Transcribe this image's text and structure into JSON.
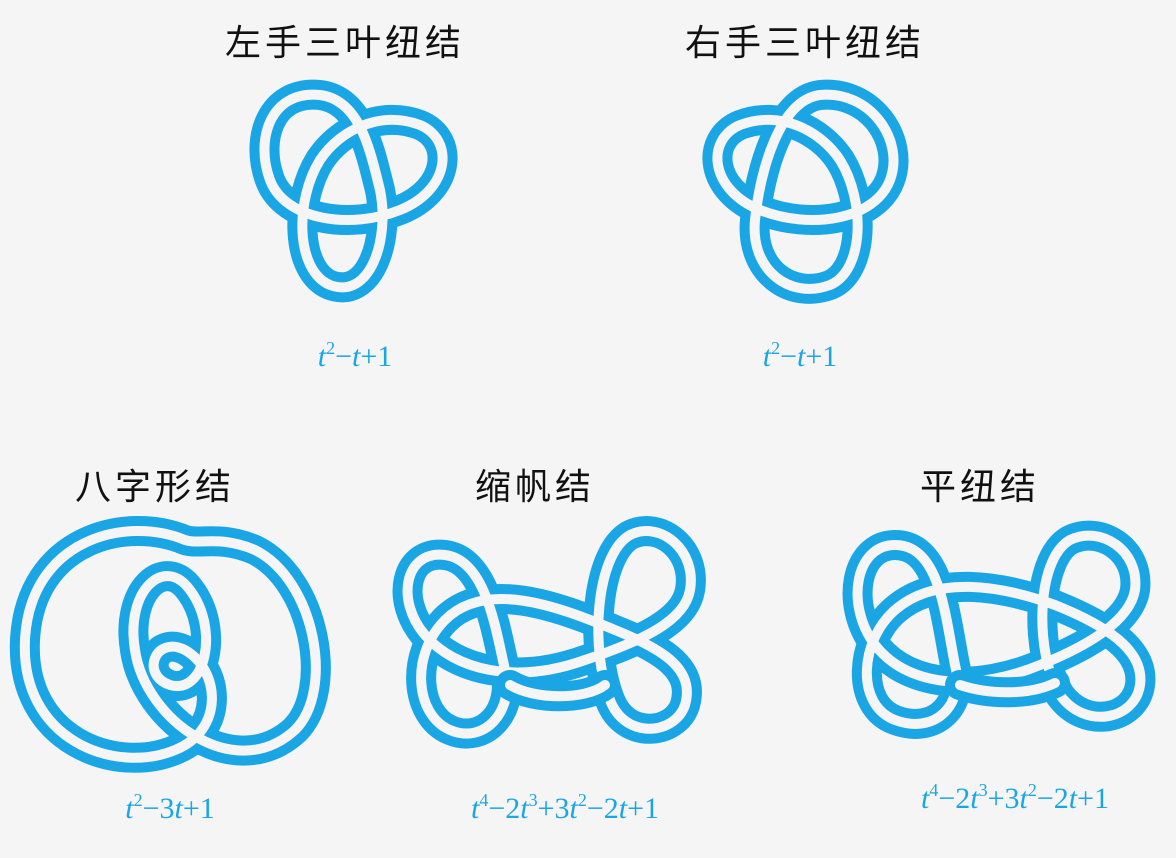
{
  "knots": [
    {
      "title": "左手三叶纽结",
      "polynomial_parts": [
        {
          "t": "t",
          "i": true
        },
        {
          "t": "2",
          "sup": true
        },
        {
          "t": "−"
        },
        {
          "t": "t",
          "i": true
        },
        {
          "t": "+1"
        }
      ]
    },
    {
      "title": "右手三叶纽结",
      "polynomial_parts": [
        {
          "t": "t",
          "i": true
        },
        {
          "t": "2",
          "sup": true
        },
        {
          "t": "−"
        },
        {
          "t": "t",
          "i": true
        },
        {
          "t": "+1"
        }
      ]
    },
    {
      "title": "八字形结",
      "polynomial_parts": [
        {
          "t": "t",
          "i": true
        },
        {
          "t": "2",
          "sup": true
        },
        {
          "t": "−3"
        },
        {
          "t": "t",
          "i": true
        },
        {
          "t": "+1"
        }
      ]
    },
    {
      "title": "缩帆结",
      "polynomial_parts": [
        {
          "t": "t",
          "i": true
        },
        {
          "t": "4",
          "sup": true
        },
        {
          "t": "−2"
        },
        {
          "t": "t",
          "i": true
        },
        {
          "t": "3",
          "sup": true
        },
        {
          "t": "+3"
        },
        {
          "t": "t",
          "i": true
        },
        {
          "t": "2",
          "sup": true
        },
        {
          "t": "−2"
        },
        {
          "t": "t",
          "i": true
        },
        {
          "t": "+1"
        }
      ]
    },
    {
      "title": "平纽结",
      "polynomial_parts": [
        {
          "t": "t",
          "i": true
        },
        {
          "t": "4",
          "sup": true
        },
        {
          "t": "−2"
        },
        {
          "t": "t",
          "i": true
        },
        {
          "t": "3",
          "sup": true
        },
        {
          "t": "+3"
        },
        {
          "t": "t",
          "i": true
        },
        {
          "t": "2",
          "sup": true
        },
        {
          "t": "−2"
        },
        {
          "t": "t",
          "i": true
        },
        {
          "t": "+1"
        }
      ]
    }
  ],
  "colors": {
    "knot": "#1aa6e4",
    "polynomial": "#1aa6e4",
    "title": "#111111",
    "background": "#f5f5f5"
  }
}
